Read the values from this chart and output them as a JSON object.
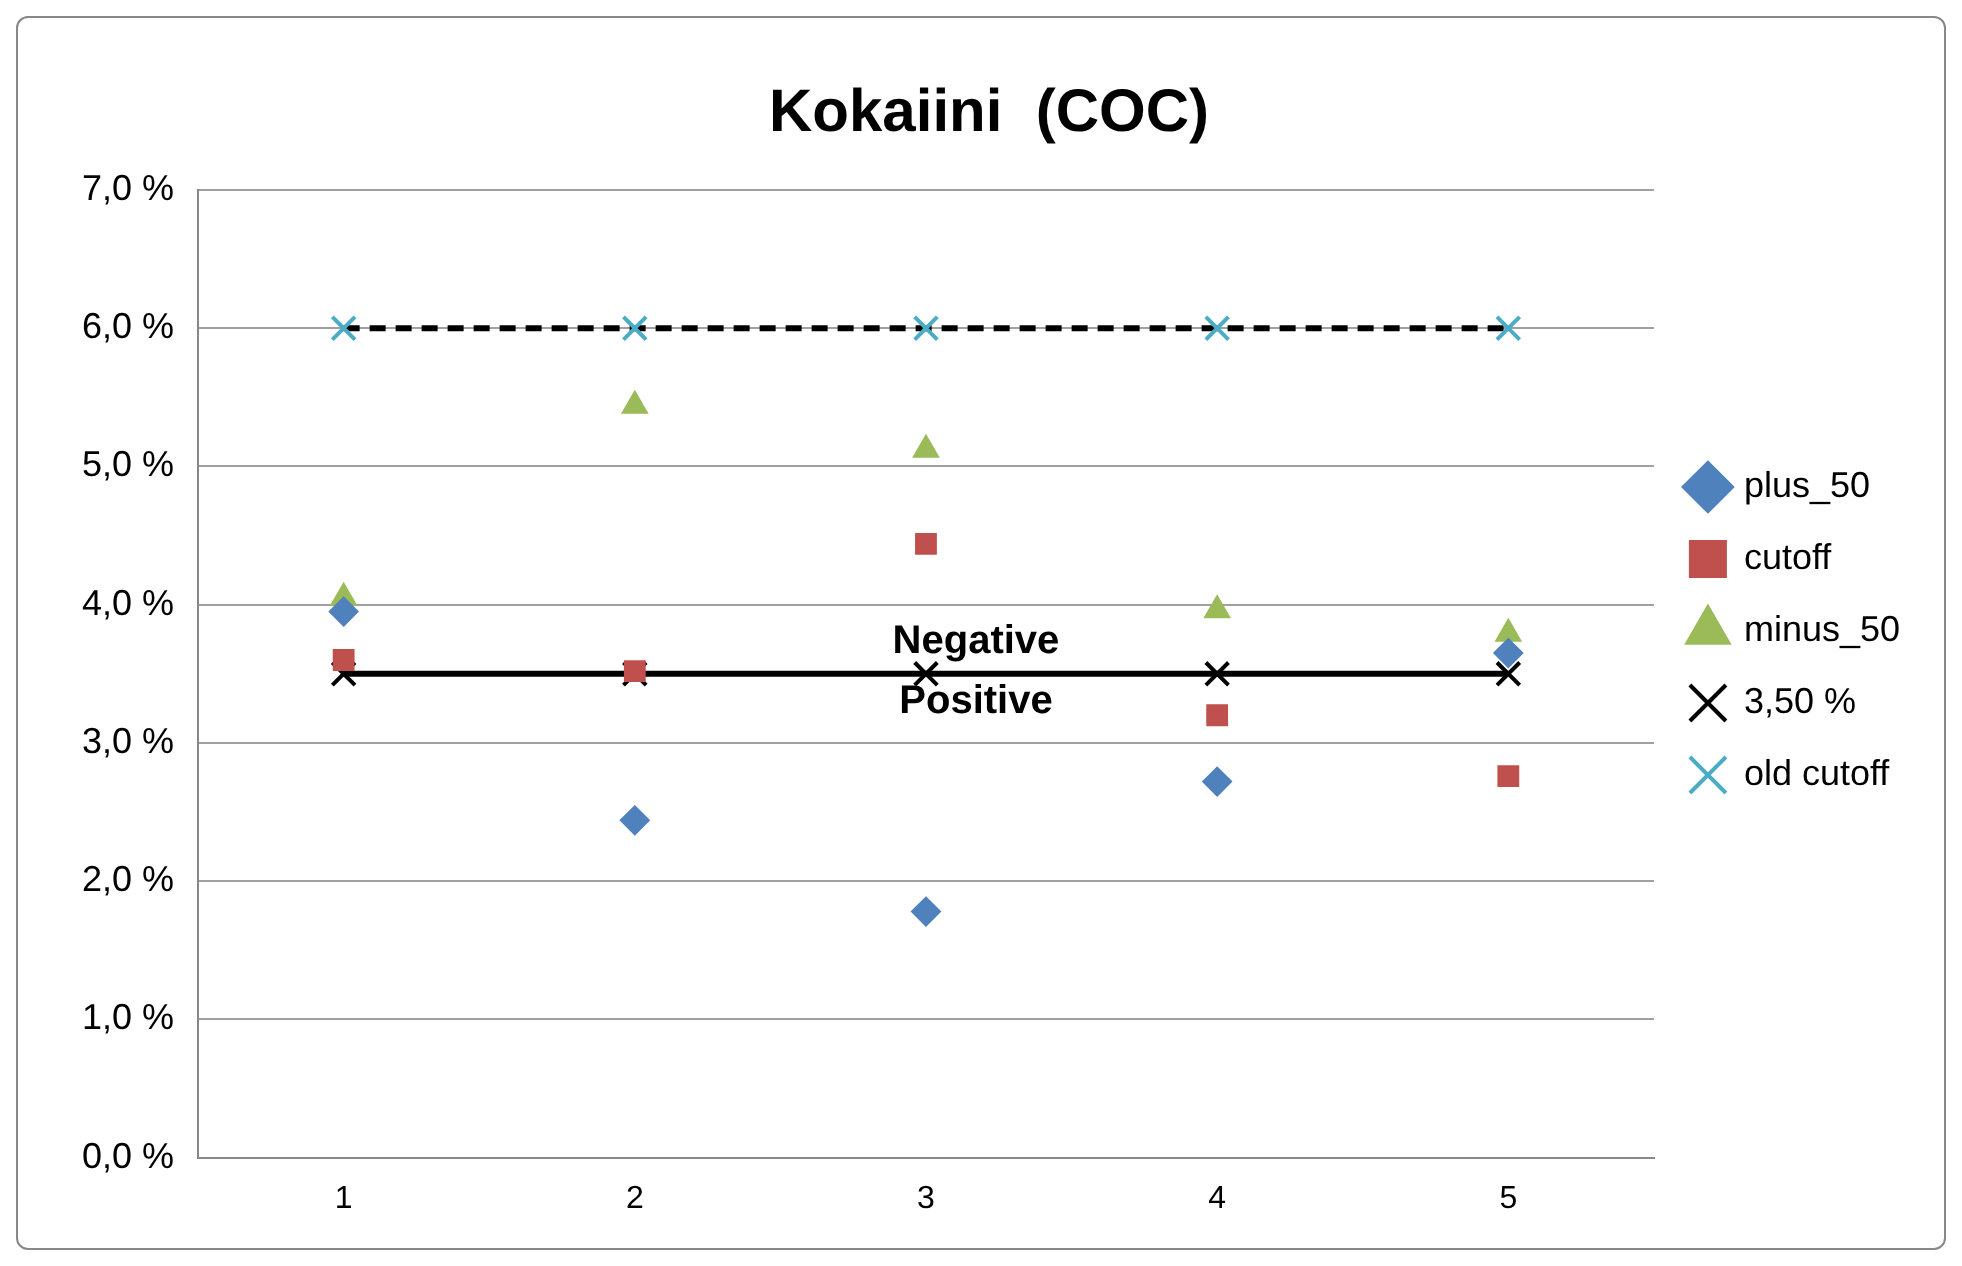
{
  "chart_data": {
    "type": "scatter",
    "title": "Kokaiini  (COC)",
    "categories": [
      "1",
      "2",
      "3",
      "4",
      "5"
    ],
    "series": [
      {
        "name": "plus_50",
        "type": "scatter",
        "marker": "diamond",
        "color": "#4f81bd",
        "values": [
          3.95,
          2.44,
          1.78,
          2.72,
          3.65
        ]
      },
      {
        "name": "cutoff",
        "type": "scatter",
        "marker": "square",
        "color": "#c0504d",
        "values": [
          3.6,
          3.52,
          4.44,
          3.2,
          2.76
        ]
      },
      {
        "name": "minus_50",
        "type": "scatter",
        "marker": "triangle",
        "color": "#9bbb59",
        "values": [
          4.05,
          5.44,
          5.12,
          3.96,
          3.79
        ]
      },
      {
        "name": "3,50 %",
        "type": "line",
        "marker": "cross",
        "line_style": "solid",
        "color": "#000000",
        "values": [
          3.5,
          3.5,
          3.5,
          3.5,
          3.5
        ]
      },
      {
        "name": "old cutoff",
        "type": "line",
        "marker": "cross",
        "line_style": "dashed",
        "color": "#4bacc6",
        "values": [
          6,
          6,
          6,
          6,
          6
        ]
      }
    ],
    "ylim": [
      0,
      7
    ],
    "yticks": [
      {
        "value": 0,
        "label": "0,0 %"
      },
      {
        "value": 1,
        "label": "1,0 %"
      },
      {
        "value": 2,
        "label": "2,0 %"
      },
      {
        "value": 3,
        "label": "3,0 %"
      },
      {
        "value": 4,
        "label": "4,0 %"
      },
      {
        "value": 5,
        "label": "5,0 %"
      },
      {
        "value": 6,
        "label": "6,0 %"
      },
      {
        "value": 7,
        "label": "7,0 %"
      }
    ],
    "grid": "y",
    "legend": "right",
    "annotations": [
      {
        "text": "Negative",
        "x": "3",
        "y": 3.5
      },
      {
        "text": "Positive",
        "x": "3",
        "y": 3.5
      }
    ]
  }
}
